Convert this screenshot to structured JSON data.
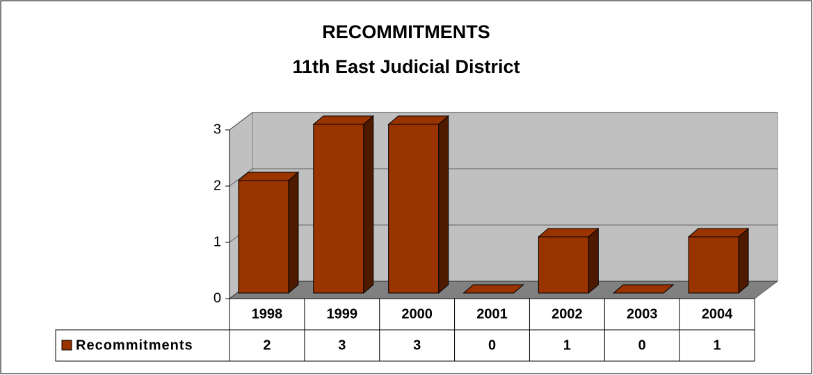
{
  "chart_data": {
    "type": "bar3d",
    "title": "RECOMMITMENTS",
    "subtitle": "11th East Judicial District",
    "categories": [
      "1998",
      "1999",
      "2000",
      "2001",
      "2002",
      "2003",
      "2004"
    ],
    "series": [
      {
        "name": "Recommitments",
        "color": "#993300",
        "values": [
          2,
          3,
          3,
          0,
          1,
          0,
          1
        ]
      }
    ],
    "ylim": [
      0,
      3
    ],
    "yticks": [
      0,
      1,
      2,
      3
    ],
    "grid": true,
    "data_table": true
  }
}
